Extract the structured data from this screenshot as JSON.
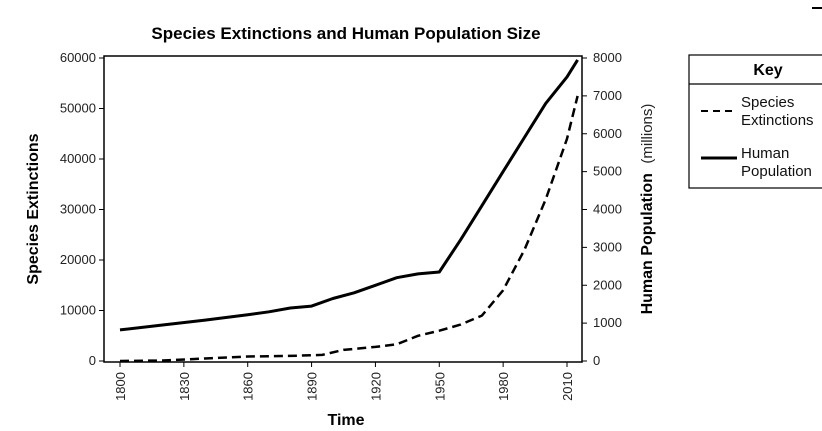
{
  "chart_data": {
    "type": "line",
    "title": "Species Extinctions and Human Population Size",
    "xlabel": "Time",
    "ylabel_left": "Species Extinctions",
    "ylabel_right": "Human Population",
    "ylabel_right_unit": "(millions)",
    "x_ticks": [
      "1800",
      "1830",
      "1860",
      "1890",
      "1920",
      "1950",
      "1980",
      "2010"
    ],
    "xlim": [
      1800,
      2010
    ],
    "y_left_ticks": [
      "0",
      "10000",
      "20000",
      "30000",
      "40000",
      "50000",
      "60000"
    ],
    "ylim_left": [
      0,
      60000
    ],
    "y_right_ticks": [
      "0",
      "1000",
      "2000",
      "3000",
      "4000",
      "5000",
      "6000",
      "7000",
      "8000"
    ],
    "ylim_right": [
      0,
      8000
    ],
    "grid": false,
    "legend_position": "right",
    "legend_title": "Key",
    "series": [
      {
        "name": "Species Extinctions",
        "axis": "left",
        "style": "dashed",
        "x": [
          1800,
          1820,
          1840,
          1860,
          1880,
          1895,
          1905,
          1920,
          1930,
          1940,
          1950,
          1960,
          1970,
          1980,
          1990,
          2000,
          2010,
          2015
        ],
        "y": [
          0,
          100,
          500,
          900,
          1000,
          1200,
          2200,
          2800,
          3300,
          5000,
          6000,
          7200,
          9000,
          14000,
          22000,
          32000,
          44000,
          52500
        ]
      },
      {
        "name": "Human Population",
        "axis": "right",
        "style": "solid",
        "x": [
          1800,
          1820,
          1840,
          1860,
          1870,
          1880,
          1890,
          1900,
          1910,
          1920,
          1930,
          1940,
          1950,
          1960,
          1970,
          1980,
          1990,
          2000,
          2010,
          2015
        ],
        "y": [
          820,
          950,
          1080,
          1220,
          1300,
          1400,
          1450,
          1650,
          1800,
          2000,
          2200,
          2300,
          2350,
          3200,
          4100,
          5000,
          5900,
          6800,
          7500,
          7950
        ]
      }
    ]
  }
}
